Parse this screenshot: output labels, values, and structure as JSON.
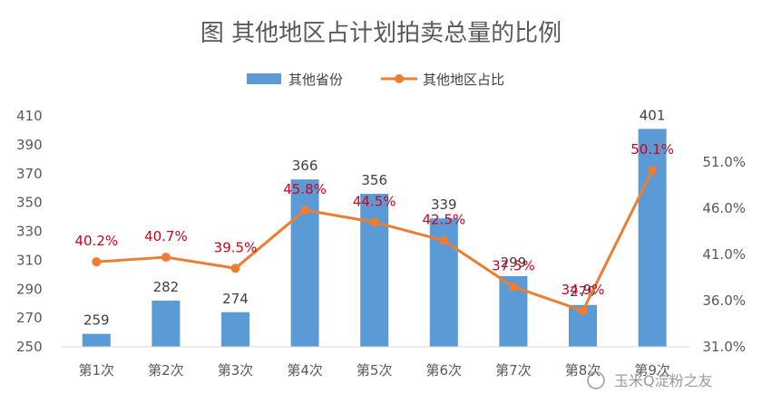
{
  "chart_data": {
    "type": "bar",
    "title": "图  其他地区占计划拍卖总量的比例",
    "categories": [
      "第1次",
      "第2次",
      "第3次",
      "第4次",
      "第5次",
      "第6次",
      "第7次",
      "第8次",
      "第9次"
    ],
    "series": [
      {
        "name": "其他省份",
        "type": "bar",
        "axis": "left",
        "values": [
          259,
          282,
          274,
          366,
          356,
          339,
          299,
          279,
          401
        ],
        "labels": [
          "259",
          "282",
          "274",
          "366",
          "356",
          "339",
          "299",
          "279",
          "401"
        ],
        "color": "#5b9bd5"
      },
      {
        "name": "其他地区占比",
        "type": "line",
        "axis": "right",
        "values": [
          40.2,
          40.7,
          39.5,
          45.8,
          44.5,
          42.5,
          37.5,
          34.9,
          50.1
        ],
        "labels": [
          "40.2%",
          "40.7%",
          "39.5%",
          "45.8%",
          "44.5%",
          "42.5%",
          "37.5%",
          "34.9%",
          "50.1%"
        ],
        "color": "#ed7d31"
      }
    ],
    "y_left": {
      "min": 250,
      "max": 410,
      "ticks": [
        "410",
        "390",
        "370",
        "350",
        "330",
        "310",
        "290",
        "270",
        "250"
      ]
    },
    "y_right": {
      "min": 31,
      "max": 56,
      "ticks": [
        "51.0%",
        "46.0%",
        "41.0%",
        "36.0%",
        "31.0%"
      ]
    },
    "legend_position": "top-center",
    "grid": false
  },
  "watermark": {
    "text": "玉米Q淀粉之友"
  }
}
